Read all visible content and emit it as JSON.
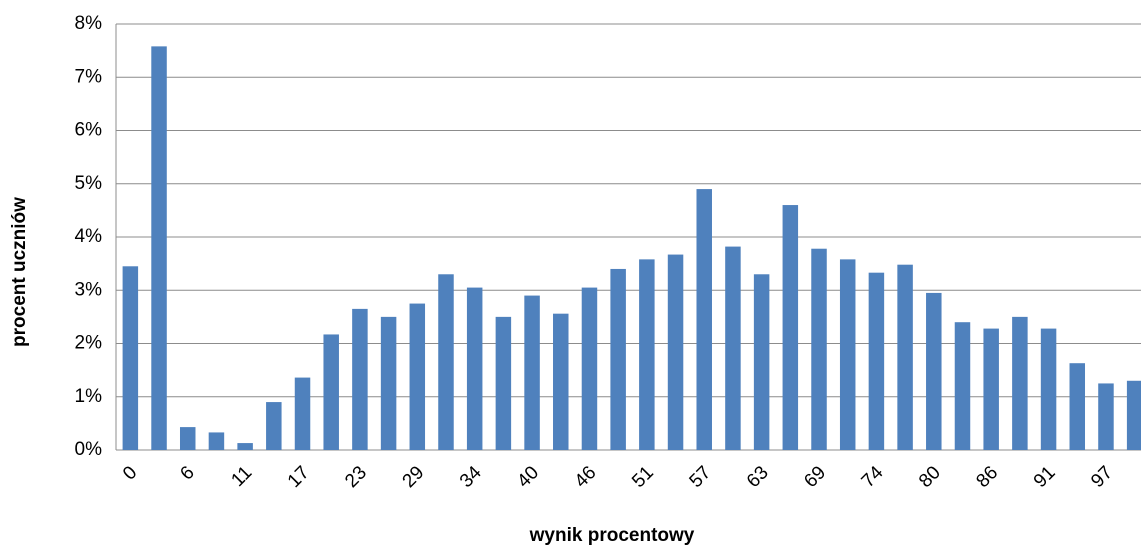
{
  "chart_data": {
    "type": "bar",
    "x_label": "wynik procentowy",
    "y_label": "procent uczniów",
    "categories": [
      "0",
      null,
      "6",
      null,
      "11",
      null,
      "17",
      null,
      "23",
      null,
      "29",
      null,
      "34",
      null,
      "40",
      null,
      "46",
      null,
      "51",
      null,
      "57",
      null,
      "63",
      null,
      "69",
      null,
      "74",
      null,
      "80",
      null,
      "86",
      null,
      "91",
      null,
      "97",
      null
    ],
    "values": [
      3.45,
      7.58,
      0.43,
      0.33,
      0.13,
      0.9,
      1.36,
      2.17,
      2.65,
      2.5,
      2.75,
      3.3,
      3.05,
      2.5,
      2.9,
      2.56,
      3.05,
      3.4,
      3.58,
      3.67,
      4.9,
      3.82,
      3.3,
      4.6,
      3.78,
      3.58,
      3.33,
      3.48,
      2.95,
      2.4,
      2.28,
      2.5,
      2.28,
      1.63,
      1.25,
      1.3
    ],
    "color": "#4f81bd",
    "ylim": [
      0,
      8
    ],
    "yticks": [
      {
        "value": 0,
        "label": "0%"
      },
      {
        "value": 1,
        "label": "1%"
      },
      {
        "value": 2,
        "label": "2%"
      },
      {
        "value": 3,
        "label": "3%"
      },
      {
        "value": 4,
        "label": "4%"
      },
      {
        "value": 5,
        "label": "5%"
      },
      {
        "value": 6,
        "label": "6%"
      },
      {
        "value": 7,
        "label": "7%"
      },
      {
        "value": 8,
        "label": "8%"
      }
    ],
    "grid": true
  }
}
